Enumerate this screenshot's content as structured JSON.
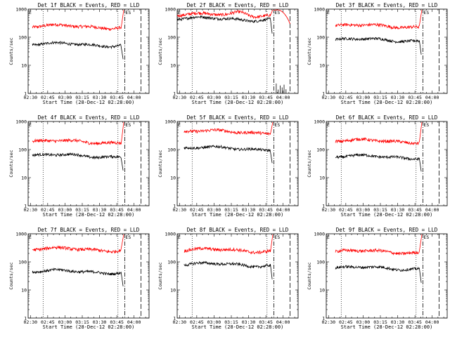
{
  "chart_data": [
    {
      "type": "line",
      "title": "Det 1f BLACK = Events, RED = LLD",
      "black_level": 55,
      "red_level": 240,
      "black_start": 3.7
    },
    {
      "type": "line",
      "title": "Det 2f BLACK = Events, RED = LLD",
      "black_level": 450,
      "red_level": 620,
      "black_start": 0.0
    },
    {
      "type": "line",
      "title": "Det 3f BLACK = Events, RED = LLD",
      "black_level": 80,
      "red_level": 250,
      "black_start": 8.0
    },
    {
      "type": "line",
      "title": "Det 4f BLACK = Events, RED = LLD",
      "black_level": 60,
      "red_level": 190,
      "black_start": 3.7
    },
    {
      "type": "line",
      "title": "Det 5f BLACK = Events, RED = LLD",
      "black_level": 110,
      "red_level": 430,
      "black_start": 6.0
    },
    {
      "type": "line",
      "title": "Det 6f BLACK = Events, RED = LLD",
      "black_level": 55,
      "red_level": 200,
      "black_start": 8.0
    },
    {
      "type": "line",
      "title": "Det 7f BLACK = Events, RED = LLD",
      "black_level": 45,
      "red_level": 280,
      "black_start": 3.7
    },
    {
      "type": "line",
      "title": "Det 8f BLACK = Events, RED = LLD",
      "black_level": 80,
      "red_level": 260,
      "black_start": 6.0
    },
    {
      "type": "line",
      "title": "Det 9f BLACK = Events, RED = LLD",
      "black_level": 60,
      "red_level": 230,
      "black_start": 8.0
    }
  ],
  "axes": {
    "xlabel": "Start Time (28-Dec-12 02:28:00)",
    "ylabel": "Counts/sec",
    "x_range_min": [
      0,
      105
    ],
    "y_range": [
      1,
      1000
    ],
    "y_scale": "log",
    "x_ticks": [
      {
        "v": 2,
        "label": "02:30"
      },
      {
        "v": 17,
        "label": "02:45"
      },
      {
        "v": 32,
        "label": "03:00"
      },
      {
        "v": 47,
        "label": "03:15"
      },
      {
        "v": 62,
        "label": "03:30"
      },
      {
        "v": 77,
        "label": "03:45"
      },
      {
        "v": 92,
        "label": "04:00"
      }
    ],
    "y_ticks": [
      {
        "v": 1,
        "label": "1"
      },
      {
        "v": 10,
        "label": "10"
      },
      {
        "v": 100,
        "label": "100"
      },
      {
        "v": 1000,
        "label": "1000"
      }
    ],
    "dotted_markers_min": [
      13,
      78
    ],
    "dashed_markers_min": [
      84,
      98
    ],
    "annotation_left": "E",
    "annotation_right": "ES",
    "annotation_x_min": [
      0.5,
      84.5
    ]
  },
  "colors": {
    "events": "#000000",
    "lld": "#ff0000"
  }
}
